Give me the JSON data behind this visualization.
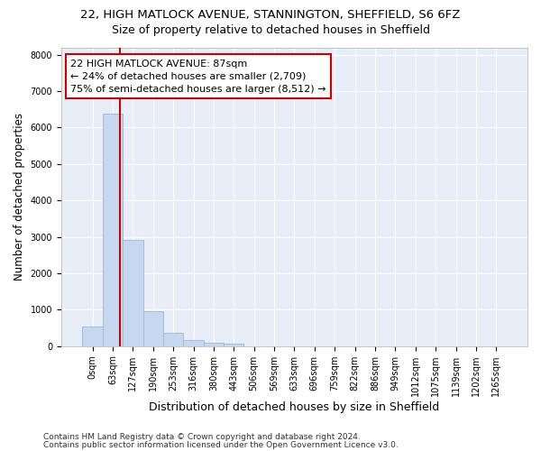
{
  "title_line1": "22, HIGH MATLOCK AVENUE, STANNINGTON, SHEFFIELD, S6 6FZ",
  "title_line2": "Size of property relative to detached houses in Sheffield",
  "xlabel": "Distribution of detached houses by size in Sheffield",
  "ylabel": "Number of detached properties",
  "bar_color": "#c5d8f0",
  "bar_edge_color": "#9ab8d8",
  "background_color": "#e8eef8",
  "grid_color": "#ffffff",
  "categories": [
    "0sqm",
    "63sqm",
    "127sqm",
    "190sqm",
    "253sqm",
    "316sqm",
    "380sqm",
    "443sqm",
    "506sqm",
    "569sqm",
    "633sqm",
    "696sqm",
    "759sqm",
    "822sqm",
    "886sqm",
    "949sqm",
    "1012sqm",
    "1075sqm",
    "1139sqm",
    "1202sqm",
    "1265sqm"
  ],
  "values": [
    540,
    6390,
    2920,
    970,
    370,
    160,
    100,
    70,
    0,
    0,
    0,
    0,
    0,
    0,
    0,
    0,
    0,
    0,
    0,
    0,
    0
  ],
  "annotation_line1": "22 HIGH MATLOCK AVENUE: 87sqm",
  "annotation_line2": "← 24% of detached houses are smaller (2,709)",
  "annotation_line3": "75% of semi-detached houses are larger (8,512) →",
  "vline_x": 1.37,
  "vline_color": "#cc0000",
  "annotation_box_color": "#cc0000",
  "ylim": [
    0,
    8200
  ],
  "yticks": [
    0,
    1000,
    2000,
    3000,
    4000,
    5000,
    6000,
    7000,
    8000
  ],
  "title_fontsize": 9.5,
  "subtitle_fontsize": 9,
  "ylabel_fontsize": 8.5,
  "xlabel_fontsize": 9,
  "tick_fontsize": 7,
  "annotation_fontsize": 8,
  "footer_fontsize": 6.5,
  "footer_line1": "Contains HM Land Registry data © Crown copyright and database right 2024.",
  "footer_line2": "Contains public sector information licensed under the Open Government Licence v3.0."
}
